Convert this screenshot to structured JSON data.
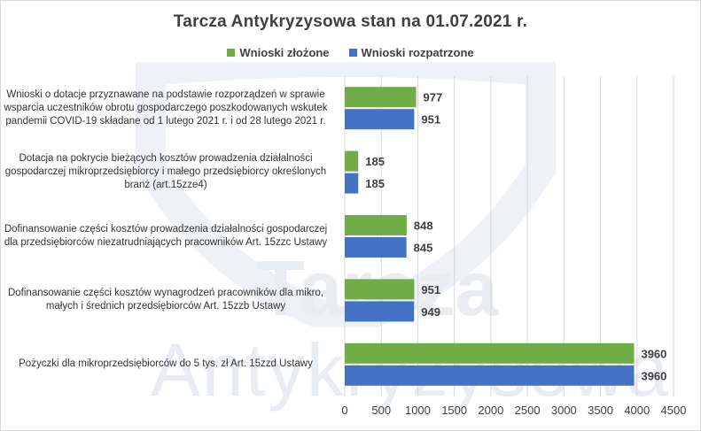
{
  "chart_data": {
    "type": "bar",
    "orientation": "horizontal",
    "title": "Tarcza Antykryzysowa  stan na 01.07.2021 r.",
    "categories": [
      "Wnioski o dotacje przyznawane na podstawie rozporządzeń w sprawie wsparcia uczestników obrotu gospodarczego poszkodowanych wskutek pandemii COVID-19 składane od 1 lutego 2021 r. i od 28 lutego 2021 r.",
      "Dotacja na pokrycie bieżących kosztów prowadzenia działalności gospodarczej mikroprzedsiębiorcy i małego przedsiębiorcy określonych branż (art.15zze4)",
      "Dofinansowanie części kosztów prowadzenia działalności gospodarczej dla przedsiębiorców niezatrudniających pracowników Art. 15zzc Ustawy",
      "Dofinansowanie części kosztów wynagrodzeń pracowników dla mikro, małych i średnich przedsiębiorców Art. 15zzb Ustawy",
      "Pożyczki dla mikroprzedsiębiorców do 5 tys. zł Art. 15zzd Ustawy"
    ],
    "series": [
      {
        "name": "Wnioski złożone",
        "color": "#70ad47",
        "values": [
          977,
          185,
          848,
          951,
          3960
        ]
      },
      {
        "name": "Wnioski rozpatrzone",
        "color": "#4472c4",
        "values": [
          951,
          185,
          845,
          949,
          3960
        ]
      }
    ],
    "x_ticks": [
      "0",
      "500",
      "1000",
      "1500",
      "2000",
      "2500",
      "3000",
      "3500",
      "4000",
      "4500"
    ],
    "xlim": [
      0,
      4500
    ],
    "legend": "top-center",
    "grid": true
  },
  "watermark": {
    "line1": "Tarcza",
    "line2": "Antykryzysowa"
  }
}
